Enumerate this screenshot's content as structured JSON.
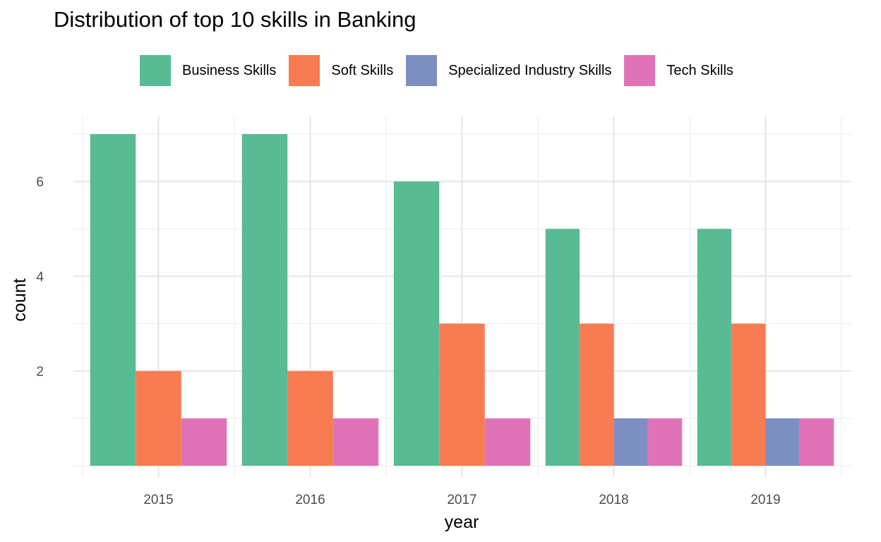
{
  "chart_data": {
    "type": "bar",
    "title": "Distribution of top 10 skills in Banking",
    "xlabel": "year",
    "ylabel": "count",
    "categories": [
      "2015",
      "2016",
      "2017",
      "2018",
      "2019"
    ],
    "series": [
      {
        "name": "Business Skills",
        "color": "#58BB93",
        "values": [
          7,
          7,
          6,
          5,
          5
        ]
      },
      {
        "name": "Soft Skills",
        "color": "#F87C51",
        "values": [
          2,
          2,
          3,
          3,
          3
        ]
      },
      {
        "name": "Specialized Industry Skills",
        "color": "#7D8FC1",
        "values": [
          0,
          0,
          0,
          1,
          1
        ]
      },
      {
        "name": "Tech Skills",
        "color": "#E073B8",
        "values": [
          1,
          1,
          1,
          1,
          1
        ]
      }
    ],
    "yticks": [
      2,
      4,
      6
    ],
    "ylim": [
      0,
      7.35
    ],
    "grid": true,
    "legend_position": "top"
  }
}
